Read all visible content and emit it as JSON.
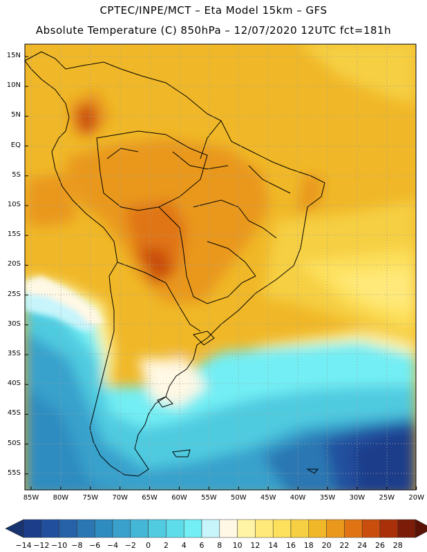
{
  "header": {
    "title_line1": "CPTEC/INPE/MCT –  Eta Model 15km – GFS",
    "title_line2": "Absolute Temperature (C) 850hPa – 12/07/2020 12UTC fct=181h"
  },
  "map": {
    "lat_labels": [
      "15N",
      "10N",
      "5N",
      "EQ",
      "5S",
      "10S",
      "15S",
      "20S",
      "25S",
      "30S",
      "35S",
      "40S",
      "45S",
      "50S",
      "55S"
    ],
    "lon_labels": [
      "85W",
      "80W",
      "75W",
      "70W",
      "65W",
      "60W",
      "55W",
      "50W",
      "45W",
      "40W",
      "35W",
      "30W",
      "25W",
      "20W"
    ],
    "extent": {
      "lon_min": -86,
      "lon_max": -20,
      "lat_min": -58,
      "lat_max": 16
    }
  },
  "colorbar": {
    "labels": [
      "-14",
      "-12",
      "-10",
      "-8",
      "-6",
      "-4",
      "-2",
      "0",
      "2",
      "4",
      "6",
      "8",
      "10",
      "12",
      "14",
      "16",
      "18",
      "20",
      "22",
      "24",
      "26",
      "28"
    ],
    "colors": [
      "#1b3d8a",
      "#214f9e",
      "#2762a8",
      "#2b77b3",
      "#2f8cc0",
      "#39a1cc",
      "#44b6d6",
      "#50cbe0",
      "#5edcea",
      "#72eef4",
      "#c8f4fb",
      "#fff8e4",
      "#fff4a6",
      "#ffe97a",
      "#fde05c",
      "#f6cf42",
      "#f0b828",
      "#e9981c",
      "#e07414",
      "#c94e0e",
      "#a93009",
      "#7a1c07"
    ],
    "under_color": "#173470",
    "over_color": "#5a1205"
  }
}
